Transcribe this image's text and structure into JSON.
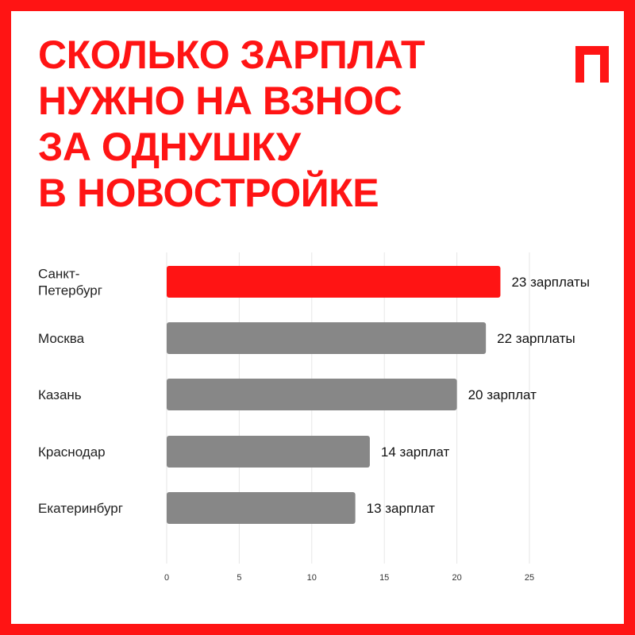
{
  "title_lines": [
    "СКОЛЬКО ЗАРПЛАТ",
    "НУЖНО НА ВЗНОС",
    "ЗА ОДНУШКУ",
    "В НОВОСТРОЙКЕ"
  ],
  "logo_letter": "П",
  "colors": {
    "accent": "#ff1414",
    "bar_default": "#878787",
    "frame": "#ff1414"
  },
  "chart_data": {
    "type": "bar",
    "orientation": "horizontal",
    "categories": [
      [
        "Санкт-",
        "Петербург"
      ],
      [
        "Москва"
      ],
      [
        "Казань"
      ],
      [
        "Краснодар"
      ],
      [
        "Екатеринбург"
      ]
    ],
    "values": [
      23,
      22,
      20,
      14,
      13
    ],
    "value_labels": [
      "23 зарплаты",
      "22 зарплаты",
      "20 зарплат",
      "14 зарплат",
      "13 зарплат"
    ],
    "highlight_index": 0,
    "x_ticks": [
      0,
      5,
      10,
      15,
      20,
      25
    ],
    "xlim": [
      0,
      25
    ],
    "grid": "vertical"
  }
}
